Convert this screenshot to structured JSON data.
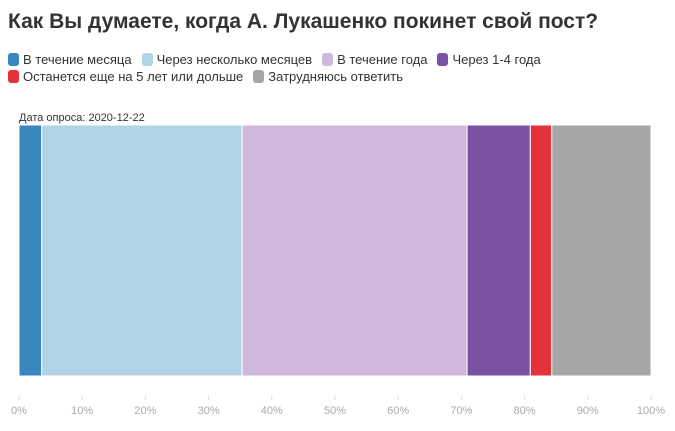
{
  "chart_data": {
    "type": "bar",
    "orientation": "horizontal",
    "stacked": true,
    "title": "Как Вы думаете, когда А. Лукашенко покинет свой пост?",
    "categories": [
      "Дата опроса: 2020-12-22"
    ],
    "series": [
      {
        "name": "В течение месяца",
        "color": "#3a87c0",
        "values": [
          3.6
        ]
      },
      {
        "name": "Через несколько месяцев",
        "color": "#b0d4e6",
        "values": [
          31.7
        ]
      },
      {
        "name": "В течение года",
        "color": "#cfb8dc",
        "values": [
          35.6
        ]
      },
      {
        "name": "Через 1-4 года",
        "color": "#7b51a4",
        "values": [
          10.0
        ]
      },
      {
        "name": "Останется еще на 5 лет или дольше",
        "color": "#e3323a",
        "values": [
          3.4
        ]
      },
      {
        "name": "Затрудняюсь ответить",
        "color": "#a6a6a6",
        "values": [
          15.7
        ]
      }
    ],
    "xlim": [
      0,
      100
    ],
    "xticks": [
      {
        "value": 0,
        "label": "0%"
      },
      {
        "value": 10,
        "label": "10%"
      },
      {
        "value": 20,
        "label": "20%"
      },
      {
        "value": 30,
        "label": "30%"
      },
      {
        "value": 40,
        "label": "40%"
      },
      {
        "value": 50,
        "label": "50%"
      },
      {
        "value": 60,
        "label": "60%"
      },
      {
        "value": 70,
        "label": "70%"
      },
      {
        "value": 80,
        "label": "80%"
      },
      {
        "value": 90,
        "label": "90%"
      },
      {
        "value": 100,
        "label": "100%"
      }
    ]
  }
}
